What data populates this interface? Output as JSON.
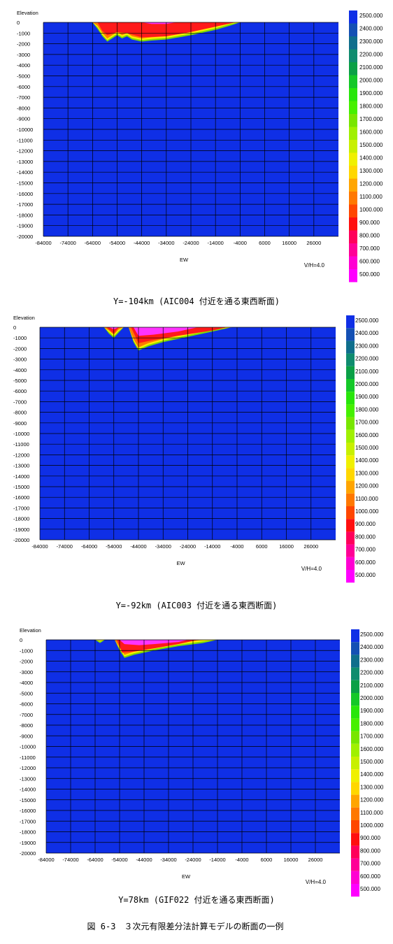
{
  "figure_caption": "図 6-3　３次元有限差分法計算モデルの断面の一例",
  "colors": {
    "background": "#0f2fe6",
    "grid": "#000000",
    "layer_red": "#ff1a1a",
    "layer_orange": "#ff7a00",
    "layer_yellow": "#ffee00",
    "layer_green": "#7fdc00",
    "layer_magenta": "#ff33ff"
  },
  "colorbar": {
    "labels": [
      "2500.000",
      "2400.000",
      "2300.000",
      "2200.000",
      "2100.000",
      "2000.000",
      "1900.000",
      "1800.000",
      "1700.000",
      "1600.000",
      "1500.000",
      "1400.000",
      "1300.000",
      "1200.000",
      "1100.000",
      "1000.000",
      "900.000",
      "800.000",
      "700.000",
      "600.000",
      "500.000"
    ],
    "colors": [
      "#0f2fe6",
      "#1450b4",
      "#0f6e8c",
      "#0f8c6e",
      "#0aa046",
      "#14c828",
      "#28e60a",
      "#46f000",
      "#78e600",
      "#a0f000",
      "#c8f000",
      "#f0f000",
      "#ffd700",
      "#ffa500",
      "#ff7800",
      "#ff4600",
      "#ff0f0f",
      "#ff005a",
      "#ff0096",
      "#ff00d2",
      "#ff00ff"
    ]
  },
  "chart_data": [
    {
      "type": "heatmap",
      "title": "",
      "caption": "Y=-104km (AIC004 付近を通る東西断面)",
      "xlabel": "EW",
      "ylabel": "Elevation",
      "ratio_label": "V/H=4.0",
      "x_ticks": [
        "-84000",
        "-74000",
        "-64000",
        "-54000",
        "-44000",
        "-34000",
        "-24000",
        "-14000",
        "-4000",
        "6000",
        "16000",
        "26000"
      ],
      "y_ticks": [
        "0",
        "-1000",
        "-2000",
        "-3000",
        "-4000",
        "-5000",
        "-6000",
        "-7000",
        "-8000",
        "-9000",
        "-10000",
        "-11000",
        "-12000",
        "-13000",
        "-14000",
        "-15000",
        "-16000",
        "-17000",
        "-18000",
        "-19000",
        "-20000"
      ],
      "xlim": [
        -84000,
        36000
      ],
      "ylim": [
        -20000,
        0
      ],
      "colorbar_range": [
        500,
        2500
      ],
      "basin_bottom": [
        [
          -64000,
          0
        ],
        [
          -62000,
          -600
        ],
        [
          -60000,
          -1300
        ],
        [
          -58000,
          -1800
        ],
        [
          -56000,
          -1500
        ],
        [
          -54000,
          -1200
        ],
        [
          -52000,
          -1500
        ],
        [
          -50000,
          -1300
        ],
        [
          -48000,
          -1600
        ],
        [
          -44000,
          -1800
        ],
        [
          -40000,
          -1700
        ],
        [
          -34000,
          -1600
        ],
        [
          -24000,
          -1200
        ],
        [
          -14000,
          -700
        ],
        [
          -8000,
          -300
        ],
        [
          -4000,
          0
        ]
      ],
      "red_bottom": [
        [
          -62000,
          0
        ],
        [
          -60000,
          -800
        ],
        [
          -58000,
          -1200
        ],
        [
          -54000,
          -900
        ],
        [
          -50000,
          -1000
        ],
        [
          -44000,
          -1400
        ],
        [
          -34000,
          -1300
        ],
        [
          -24000,
          -900
        ],
        [
          -14000,
          -400
        ],
        [
          -6000,
          0
        ]
      ],
      "magenta_bottom": [
        [
          -44000,
          0
        ],
        [
          -40000,
          -150
        ],
        [
          -34000,
          -150
        ],
        [
          -30000,
          0
        ]
      ]
    },
    {
      "type": "heatmap",
      "title": "",
      "caption": "Y=-92km (AIC003 付近を通る東西断面)",
      "xlabel": "EW",
      "ylabel": "Elevation",
      "ratio_label": "V/H=4.0",
      "x_ticks": [
        "-84000",
        "-74000",
        "-64000",
        "-54000",
        "-44000",
        "-34000",
        "-24000",
        "-14000",
        "-4000",
        "6000",
        "16000",
        "26000"
      ],
      "y_ticks": [
        "0",
        "-1000",
        "-2000",
        "-3000",
        "-4000",
        "-5000",
        "-6000",
        "-7000",
        "-8000",
        "-9000",
        "-10000",
        "-11000",
        "-12000",
        "-13000",
        "-14000",
        "-15000",
        "-16000",
        "-17000",
        "-18000",
        "-19000",
        "-20000"
      ],
      "xlim": [
        -84000,
        36000
      ],
      "ylim": [
        -20000,
        0
      ],
      "colorbar_range": [
        500,
        2500
      ],
      "basin_bottom": [
        [
          -58000,
          0
        ],
        [
          -56000,
          -600
        ],
        [
          -54000,
          -1000
        ],
        [
          -52000,
          -500
        ],
        [
          -50000,
          0
        ],
        [
          -48000,
          0
        ],
        [
          -46000,
          -1400
        ],
        [
          -44000,
          -2200
        ],
        [
          -40000,
          -1800
        ],
        [
          -34000,
          -1400
        ],
        [
          -24000,
          -900
        ],
        [
          -14000,
          -400
        ],
        [
          -6000,
          0
        ]
      ],
      "red_bottom": [
        [
          -57000,
          0
        ],
        [
          -54000,
          -600
        ],
        [
          -52000,
          0
        ],
        [
          -47000,
          0
        ],
        [
          -44000,
          -1500
        ],
        [
          -38000,
          -1200
        ],
        [
          -28000,
          -800
        ],
        [
          -14000,
          -300
        ],
        [
          -8000,
          0
        ]
      ],
      "magenta_bottom": [
        [
          -56000,
          0
        ],
        [
          -54000,
          -200
        ],
        [
          -52000,
          0
        ],
        [
          -46000,
          0
        ],
        [
          -44000,
          -800
        ],
        [
          -38000,
          -700
        ],
        [
          -28000,
          -400
        ],
        [
          -20000,
          0
        ]
      ]
    },
    {
      "type": "heatmap",
      "title": "",
      "caption": "Y=78km (GIF022 付近を通る東西断面)",
      "xlabel": "EW",
      "ylabel": "Elevation",
      "ratio_label": "V/H=4.0",
      "x_ticks": [
        "-84000",
        "-74000",
        "-64000",
        "-54000",
        "-44000",
        "-34000",
        "-24000",
        "-14000",
        "-4000",
        "6000",
        "16000",
        "26000"
      ],
      "y_ticks": [
        "0",
        "-1000",
        "-2000",
        "-3000",
        "-4000",
        "-5000",
        "-6000",
        "-7000",
        "-8000",
        "-9000",
        "-10000",
        "-11000",
        "-12000",
        "-13000",
        "-14000",
        "-15000",
        "-16000",
        "-17000",
        "-18000",
        "-19000",
        "-20000"
      ],
      "xlim": [
        -84000,
        36000
      ],
      "ylim": [
        -20000,
        0
      ],
      "colorbar_range": [
        500,
        2500
      ],
      "basin_bottom": [
        [
          -64000,
          0
        ],
        [
          -62000,
          -300
        ],
        [
          -60000,
          0
        ],
        [
          -56000,
          0
        ],
        [
          -54000,
          -1000
        ],
        [
          -52000,
          -1700
        ],
        [
          -48000,
          -1400
        ],
        [
          -40000,
          -1000
        ],
        [
          -30000,
          -600
        ],
        [
          -20000,
          -300
        ],
        [
          -14000,
          0
        ]
      ],
      "red_bottom": [
        [
          -55000,
          0
        ],
        [
          -53000,
          -1200
        ],
        [
          -48000,
          -1100
        ],
        [
          -40000,
          -800
        ],
        [
          -30000,
          -400
        ],
        [
          -22000,
          0
        ]
      ],
      "magenta_bottom": [
        [
          -54000,
          0
        ],
        [
          -52000,
          -400
        ],
        [
          -46000,
          -500
        ],
        [
          -40000,
          -400
        ],
        [
          -30000,
          -200
        ],
        [
          -26000,
          0
        ]
      ]
    }
  ]
}
